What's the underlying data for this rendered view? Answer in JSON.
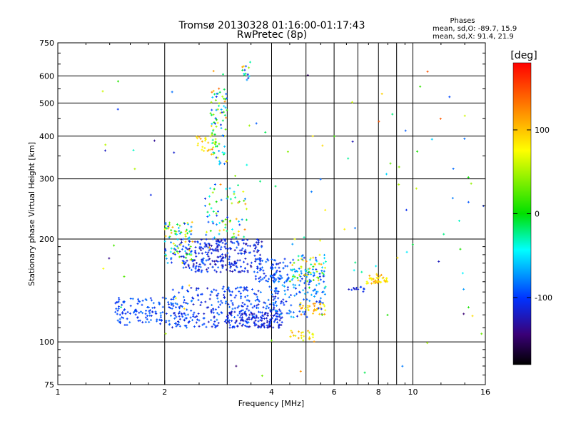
{
  "chart_data": {
    "type": "scatter",
    "title": "Tromsø 20130328 01:16:00-01:17:43",
    "subtitle": "RwPretec (8p)",
    "xlabel": "Frequency [MHz]",
    "ylabel": "Stationary phase Virtual Height [km]",
    "xscale": "log",
    "yscale": "log",
    "xlim": [
      1,
      16
    ],
    "ylim": [
      75,
      750
    ],
    "xticks": [
      1,
      2,
      4,
      6,
      8,
      10,
      16
    ],
    "xtick_labels": [
      "1",
      "2",
      "4",
      "6",
      "8",
      "10",
      "16"
    ],
    "xminor": [
      3,
      5,
      7,
      9
    ],
    "yticks": [
      75,
      100,
      200,
      300,
      400,
      500,
      600,
      750
    ],
    "ytick_labels": [
      "75",
      "100",
      "200",
      "300",
      "400",
      "500",
      "600",
      "750"
    ],
    "grid": true,
    "color_variable": "phase",
    "colorbar": {
      "title": "[deg]",
      "range": [
        -180,
        180
      ],
      "ticks": [
        100,
        0,
        -100
      ],
      "tick_labels": [
        "100",
        "0",
        "-100"
      ]
    },
    "stats": {
      "heading": "Phases",
      "line_o": "mean, sd,O: -89.7, 15.9",
      "line_x": "mean, sd,X:  91.4, 21.9"
    },
    "clusters": [
      {
        "f": [
          1.45,
          2.2
        ],
        "h": [
          112,
          135
        ],
        "phase": [
          -110,
          -80
        ],
        "n": 130
      },
      {
        "f": [
          2.1,
          4.3
        ],
        "h": [
          110,
          145
        ],
        "phase": [
          -120,
          -80
        ],
        "n": 300
      },
      {
        "f": [
          3.0,
          4.3
        ],
        "h": [
          110,
          122
        ],
        "phase": [
          -130,
          -95
        ],
        "n": 110
      },
      {
        "f": [
          4.0,
          5.7
        ],
        "h": [
          118,
          165
        ],
        "phase": [
          -110,
          -60
        ],
        "n": 130
      },
      {
        "f": [
          4.8,
          5.7
        ],
        "h": [
          120,
          130
        ],
        "phase": [
          70,
          130
        ],
        "n": 30
      },
      {
        "f": [
          2.2,
          3.8
        ],
        "h": [
          160,
          200
        ],
        "phase": [
          -130,
          -85
        ],
        "n": 280
      },
      {
        "f": [
          2.0,
          2.4
        ],
        "h": [
          170,
          225
        ],
        "phase": [
          -120,
          120
        ],
        "n": 90
      },
      {
        "f": [
          3.6,
          4.5
        ],
        "h": [
          150,
          175
        ],
        "phase": [
          -120,
          -80
        ],
        "n": 60
      },
      {
        "f": [
          4.5,
          5.7
        ],
        "h": [
          150,
          180
        ],
        "phase": [
          -120,
          130
        ],
        "n": 70
      },
      {
        "f": [
          2.6,
          3.5
        ],
        "h": [
          200,
          290
        ],
        "phase": [
          -110,
          130
        ],
        "n": 70
      },
      {
        "f": [
          2.7,
          3.0
        ],
        "h": [
          330,
          560
        ],
        "phase": [
          -110,
          140
        ],
        "n": 85
      },
      {
        "f": [
          2.45,
          2.7
        ],
        "h": [
          360,
          400
        ],
        "phase": [
          50,
          120
        ],
        "n": 20
      },
      {
        "f": [
          3.3,
          3.5
        ],
        "h": [
          570,
          660
        ],
        "phase": [
          -120,
          130
        ],
        "n": 14
      },
      {
        "f": [
          4.5,
          5.3
        ],
        "h": [
          100,
          108
        ],
        "phase": [
          60,
          120
        ],
        "n": 25
      },
      {
        "f": [
          7.4,
          8.5
        ],
        "h": [
          148,
          158
        ],
        "phase": [
          70,
          130
        ],
        "n": 40
      },
      {
        "f": [
          6.6,
          7.4
        ],
        "h": [
          140,
          145
        ],
        "phase": [
          -120,
          -90
        ],
        "n": 12
      },
      {
        "f": [
          1.3,
          16
        ],
        "h": [
          78,
          620
        ],
        "phase": [
          -150,
          150
        ],
        "n": 110
      }
    ]
  }
}
